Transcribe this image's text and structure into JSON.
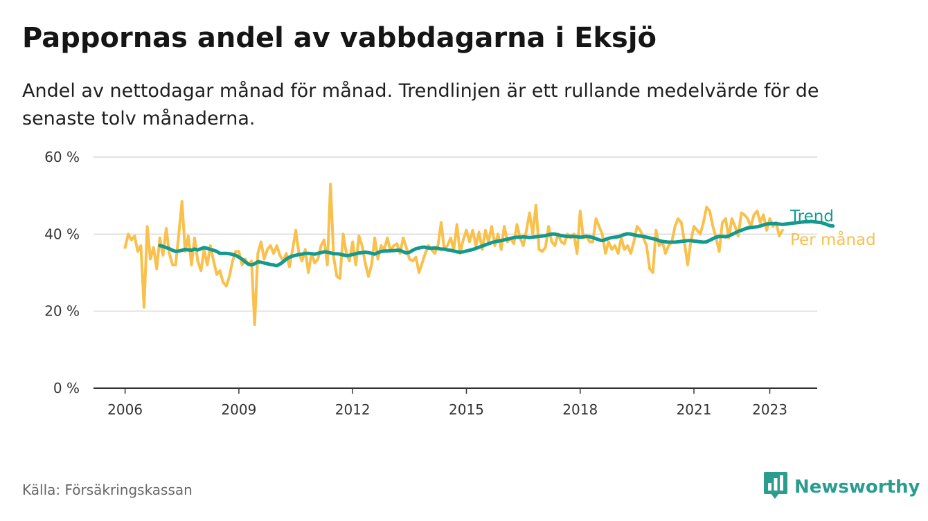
{
  "title": "Pappornas andel av vabbdagarna i Eksjö",
  "subtitle": "Andel av nettodagar månad för månad. Trendlinjen är ett rullande medelvärde för de senaste tolv månaderna.",
  "source": "Källa: Försäkringskassan",
  "brand": {
    "name": "Newsworthy",
    "logo_icon": "bar-chart-speech-bubble-icon",
    "color": "#2a9d8f"
  },
  "chart_data": {
    "type": "line",
    "y_ticks": [
      "0 %",
      "20 %",
      "40 %",
      "60 %"
    ],
    "ylim": [
      0,
      60
    ],
    "x_ticks": [
      "2006",
      "2009",
      "2012",
      "2015",
      "2018",
      "2021",
      "2023"
    ],
    "xlim": [
      "2005-03",
      "2024-04"
    ],
    "grid": true,
    "legend_placement": "right end of lines",
    "colors": {
      "monthly": "#f9c04b",
      "trend": "#15998e"
    },
    "series": [
      {
        "name": "Per månad",
        "x_start": "2006-01",
        "frequency": "monthly",
        "values": [
          36.5,
          40,
          38.5,
          39.5,
          35.5,
          37,
          21,
          42,
          33.5,
          36.5,
          31,
          39,
          34.5,
          41.5,
          35,
          32,
          32,
          40,
          48.5,
          35.5,
          39.5,
          32,
          39,
          33,
          30.5,
          36,
          32,
          37,
          33,
          29.5,
          30.5,
          27.5,
          26.5,
          29,
          33,
          35.5,
          35.5,
          32,
          33.5,
          32,
          33,
          16.5,
          35,
          38,
          33.5,
          36,
          37,
          35,
          37,
          34.5,
          33,
          35,
          31.5,
          36,
          41,
          35,
          33,
          36,
          30,
          35,
          32.5,
          33.5,
          37,
          38.5,
          32,
          53,
          34,
          29,
          28.5,
          40,
          35,
          33,
          38,
          32,
          39.5,
          37,
          32.5,
          29,
          32,
          39,
          33.5,
          37,
          36,
          39,
          35.5,
          37,
          37.5,
          35,
          39,
          36.5,
          33.5,
          33,
          34,
          30,
          32.5,
          35,
          37,
          36,
          35,
          37,
          43,
          36,
          37,
          39,
          36,
          42.5,
          35,
          38.5,
          41,
          38,
          41,
          37,
          40.5,
          36,
          41,
          38,
          42,
          37,
          40,
          36,
          42,
          38,
          39,
          37.5,
          42.5,
          39,
          37,
          41,
          45.5,
          40,
          47.5,
          36,
          35.5,
          36.5,
          42,
          38,
          37,
          40,
          38,
          37.5,
          40,
          39,
          40,
          35,
          46,
          39,
          39.5,
          38,
          38,
          44,
          42,
          40,
          35,
          38,
          36,
          37,
          35,
          39,
          36,
          37,
          35,
          38,
          42,
          41,
          39,
          37,
          31,
          30,
          41,
          37,
          38,
          35,
          37,
          38,
          42,
          44,
          43,
          38,
          32,
          38,
          42,
          41,
          40,
          43,
          47,
          46,
          42,
          39,
          35.5,
          43,
          44,
          39,
          44,
          42,
          39.5,
          45.5,
          45,
          44,
          42,
          45,
          46,
          43,
          45,
          41,
          44,
          42,
          43,
          39.5,
          41
        ]
      },
      {
        "name": "Trend",
        "x_start": "2006-12",
        "frequency": "monthly",
        "values": [
          37,
          36.8,
          36.5,
          36.2,
          35.8,
          35.5,
          35.6,
          35.8,
          36,
          35.9,
          35.8,
          36.1,
          35.9,
          36.2,
          36.5,
          36.3,
          36,
          35.8,
          35.5,
          35,
          35,
          35,
          34.9,
          34.7,
          34.5,
          34,
          33.5,
          32.8,
          32.2,
          32,
          32.3,
          32.8,
          32.7,
          32.5,
          32.3,
          32.1,
          32,
          31.8,
          32.2,
          32.8,
          33.5,
          34,
          34.3,
          34.5,
          34.7,
          34.8,
          35,
          35,
          34.9,
          34.8,
          35,
          35.2,
          35.4,
          35.3,
          35.1,
          34.9,
          34.9,
          34.8,
          34.6,
          34.4,
          34.5,
          34.7,
          34.9,
          35.1,
          35.2,
          35.3,
          35.2,
          35,
          34.8,
          35.2,
          35.5,
          35.6,
          35.6,
          35.7,
          35.7,
          35.8,
          35.8,
          35.4,
          35.1,
          35.3,
          35.8,
          36.2,
          36.4,
          36.6,
          36.6,
          36.4,
          36.3,
          36.4,
          36.3,
          36.1,
          36.1,
          35.9,
          35.8,
          35.6,
          35.4,
          35.3,
          35.4,
          35.6,
          35.8,
          36,
          36.3,
          36.6,
          36.9,
          37.2,
          37.5,
          37.8,
          38,
          38.2,
          38.3,
          38.5,
          38.7,
          38.9,
          39.1,
          39.2,
          39.2,
          39.3,
          39.2,
          39.1,
          39.2,
          39.3,
          39.4,
          39.5,
          39.6,
          39.8,
          40,
          40,
          39.8,
          39.6,
          39.5,
          39.4,
          39.4,
          39.4,
          39.3,
          39.2,
          39.3,
          39.4,
          39.3,
          39.1,
          38.8,
          38.5,
          38.3,
          38.6,
          38.9,
          39.1,
          39.2,
          39.3,
          39.6,
          39.9,
          40.1,
          40,
          39.8,
          39.6,
          39.5,
          39.4,
          39.2,
          39,
          38.8,
          38.6,
          38.3,
          38.1,
          38,
          37.9,
          37.9,
          37.9,
          38,
          38.1,
          38.2,
          38.3,
          38.3,
          38.2,
          38.1,
          38,
          37.9,
          38,
          38.4,
          38.8,
          39.2,
          39.4,
          39.4,
          39.3,
          39.5,
          39.9,
          40.3,
          40.7,
          41,
          41.3,
          41.6,
          41.7,
          41.8,
          41.9,
          42.1,
          42.4,
          42.6,
          42.7,
          42.7,
          42.7,
          42.6,
          42.5,
          42.6,
          42.7,
          42.8,
          42.9,
          43,
          43.1,
          43.2,
          43.2,
          43.3,
          43.2,
          43.1,
          43,
          42.8,
          42.5,
          42.2,
          42.1
        ]
      }
    ]
  }
}
